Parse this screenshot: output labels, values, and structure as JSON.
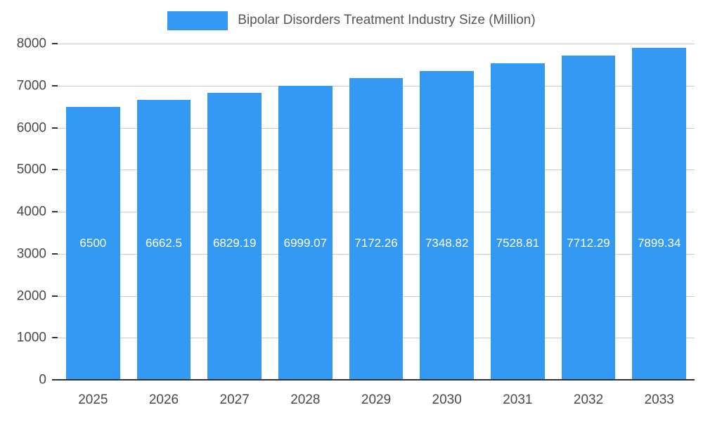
{
  "chart_data": {
    "type": "bar",
    "title": "Bipolar Disorders Treatment Industry Size (Million)",
    "categories": [
      "2025",
      "2026",
      "2027",
      "2028",
      "2029",
      "2030",
      "2031",
      "2032",
      "2033"
    ],
    "values": [
      6500,
      6662.5,
      6829.19,
      6999.07,
      7172.26,
      7348.82,
      7528.81,
      7712.29,
      7899.34
    ],
    "value_labels": [
      "6500",
      "6662.5",
      "6829.19",
      "6999.07",
      "7172.26",
      "7348.82",
      "7528.81",
      "7712.29",
      "7899.34"
    ],
    "xlabel": "",
    "ylabel": "",
    "ylim": [
      0,
      8000
    ],
    "y_ticks": [
      0,
      1000,
      2000,
      3000,
      4000,
      5000,
      6000,
      7000,
      8000
    ],
    "grid": true,
    "legend_position": "top-center",
    "bar_color": "#3399F3",
    "label_color": "#FFFFFF"
  }
}
